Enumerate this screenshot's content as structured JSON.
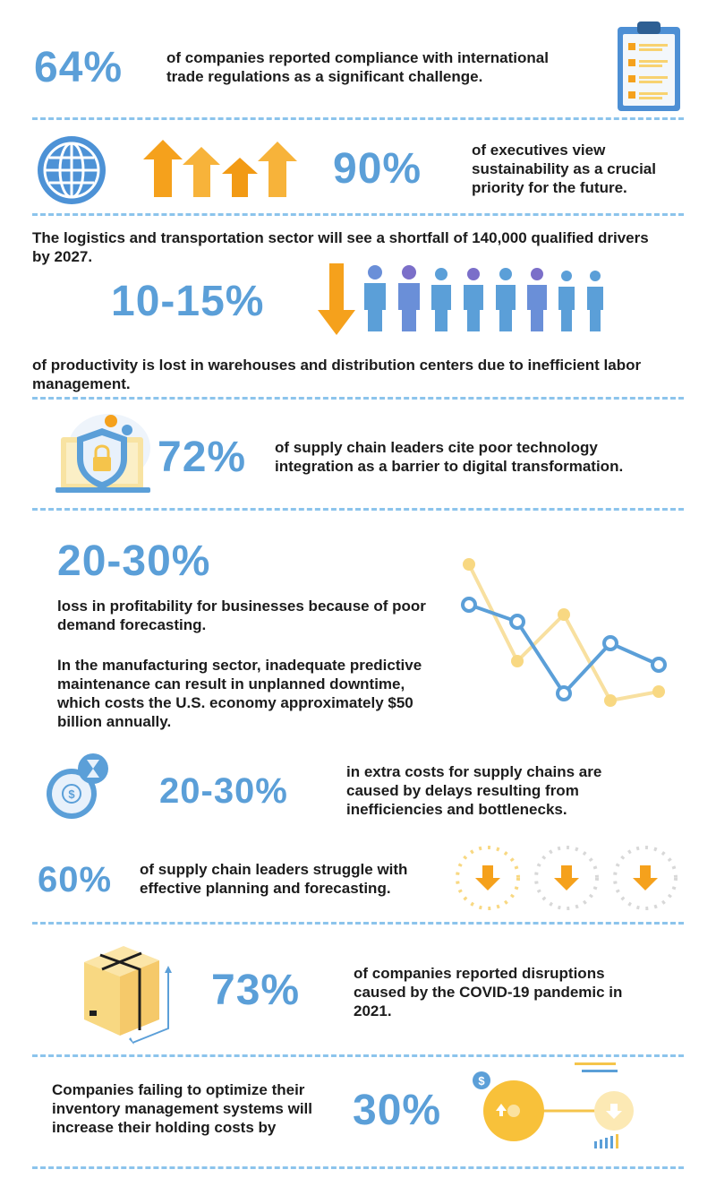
{
  "stats": [
    {
      "value": "64%",
      "text": "of companies reported compliance with international trade regulations as a significant challenge.",
      "icon": "clipboard-checklist-icon"
    },
    {
      "value": "90%",
      "text": "of executives view sustainability as a crucial priority for the future.",
      "icon": "globe-icon"
    },
    {
      "value": "10-15%",
      "pre_text": "The logistics and transportation sector will see a shortfall of 140,000 qualified drivers by 2027.",
      "text": "of productivity is lost in warehouses and distribution centers due to inefficient labor management.",
      "icon": "workforce-people-icon"
    },
    {
      "value": "72%",
      "text": "of supply chain leaders cite poor technology integration as a barrier to digital transformation.",
      "icon": "security-shield-lock-icon"
    },
    {
      "value": "20-30%",
      "text": "loss in profitability for businesses because of poor demand forecasting.",
      "extra_text": "In the manufacturing sector, inadequate predictive maintenance can result in unplanned downtime, which costs the U.S. economy approximately $50 billion annually.",
      "icon": "line-chart-icon"
    },
    {
      "value": "20-30%",
      "text": "in extra costs for supply chains are caused by delays resulting from inefficiencies and bottlenecks.",
      "icon": "clock-hourglass-dollar-icon"
    },
    {
      "value": "60%",
      "text": "of supply chain leaders struggle with effective planning and forecasting.",
      "icon": "down-arrow-circles-icon"
    },
    {
      "value": "73%",
      "text": "of companies reported disruptions caused by the COVID-19 pandemic in 2021.",
      "icon": "cardboard-box-icon"
    },
    {
      "value": "30%",
      "text": "Companies failing to optimize their inventory management systems will increase their holding costs by",
      "icon": "inventory-toggle-icon"
    }
  ],
  "colors": {
    "accent_blue": "#5b9fd8",
    "orange": "#f5a11c",
    "yellow": "#f8d270",
    "divider": "#8cc4ec"
  }
}
